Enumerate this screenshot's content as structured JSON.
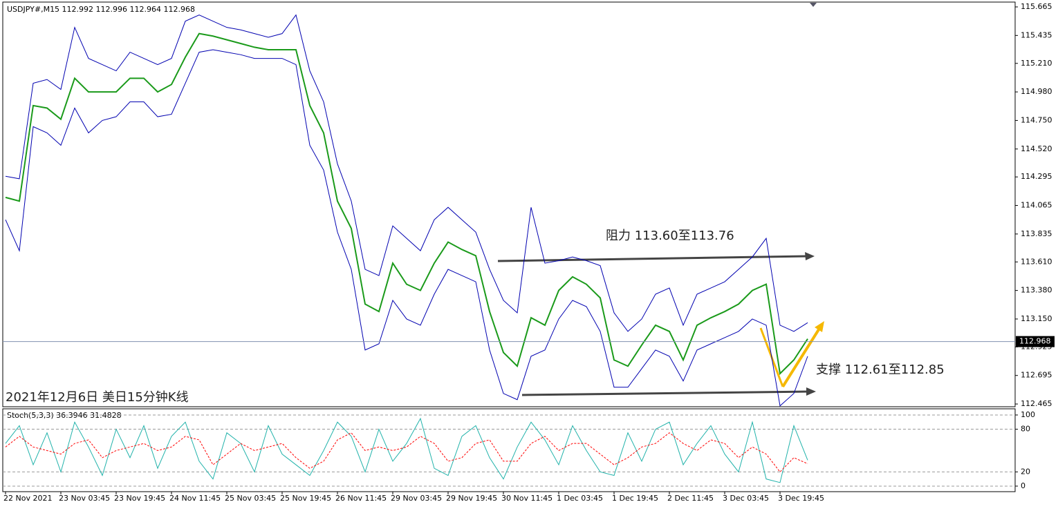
{
  "chart_data": [
    {
      "type": "line",
      "title": "USDJPY#,M15  112.992 112.996 112.964 112.968",
      "annotations": [
        "阻力 113.60至113.76",
        "支撑 112.61至112.85",
        "2021年12月6日 美日15分钟K线"
      ],
      "last_price": 112.968,
      "categories": [
        "22 Nov 2021",
        null,
        null,
        null,
        "23 Nov 03:45",
        null,
        null,
        null,
        "23 Nov 19:45",
        null,
        null,
        null,
        "24 Nov 11:45",
        null,
        null,
        null,
        "25 Nov 03:45",
        null,
        null,
        null,
        "25 Nov 19:45",
        null,
        null,
        null,
        "26 Nov 11:45",
        null,
        null,
        null,
        "29 Nov 03:45",
        null,
        null,
        null,
        "29 Nov 19:45",
        null,
        null,
        null,
        "30 Nov 11:45",
        null,
        null,
        null,
        "1 Dec 03:45",
        null,
        null,
        null,
        "1 Dec 19:45",
        null,
        null,
        null,
        "2 Dec 11:45",
        null,
        null,
        null,
        "3 Dec 03:45",
        null,
        null,
        null,
        "3 Dec 19:45",
        null,
        null
      ],
      "series": [
        {
          "name": "Price",
          "color": "#1a9a1a",
          "width": 2,
          "values": [
            114.13,
            114.1,
            114.87,
            114.85,
            114.76,
            115.09,
            114.98,
            114.98,
            114.98,
            115.09,
            115.09,
            114.98,
            115.04,
            115.26,
            115.45,
            115.43,
            115.4,
            115.37,
            115.34,
            115.32,
            115.32,
            115.32,
            114.87,
            114.65,
            114.1,
            113.88,
            113.27,
            113.21,
            113.6,
            113.43,
            113.38,
            113.6,
            113.77,
            113.71,
            113.66,
            113.21,
            112.88,
            112.77,
            113.16,
            113.1,
            113.38,
            113.49,
            113.43,
            113.32,
            112.82,
            112.77,
            112.94,
            113.1,
            113.05,
            112.82,
            113.1,
            113.16,
            113.21,
            113.27,
            113.38,
            113.43,
            112.71,
            112.82,
            112.99
          ]
        },
        {
          "name": "Upper band",
          "color": "#0000b0",
          "width": 1,
          "values": [
            114.3,
            114.28,
            115.05,
            115.08,
            115.0,
            115.5,
            115.25,
            115.2,
            115.15,
            115.3,
            115.25,
            115.2,
            115.25,
            115.55,
            115.6,
            115.55,
            115.5,
            115.48,
            115.45,
            115.42,
            115.45,
            115.6,
            115.15,
            114.9,
            114.4,
            114.1,
            113.55,
            113.5,
            113.9,
            113.8,
            113.7,
            113.95,
            114.05,
            113.95,
            113.85,
            113.55,
            113.3,
            113.2,
            114.05,
            113.6,
            113.62,
            113.65,
            113.62,
            113.58,
            113.2,
            113.05,
            113.15,
            113.35,
            113.4,
            113.1,
            113.35,
            113.4,
            113.45,
            113.55,
            113.65,
            113.8,
            113.1,
            113.05,
            113.12
          ]
        },
        {
          "name": "Lower band",
          "color": "#0000b0",
          "width": 1,
          "values": [
            113.95,
            113.7,
            114.7,
            114.65,
            114.55,
            114.85,
            114.65,
            114.75,
            114.78,
            114.9,
            114.9,
            114.78,
            114.8,
            115.05,
            115.3,
            115.32,
            115.3,
            115.28,
            115.25,
            115.25,
            115.25,
            115.2,
            114.55,
            114.35,
            113.85,
            113.55,
            112.9,
            112.95,
            113.3,
            113.15,
            113.1,
            113.35,
            113.55,
            113.5,
            113.45,
            112.9,
            112.55,
            112.5,
            112.85,
            112.9,
            113.15,
            113.3,
            113.25,
            113.05,
            112.6,
            112.6,
            112.75,
            112.9,
            112.85,
            112.65,
            112.9,
            112.95,
            113.0,
            113.05,
            113.15,
            113.1,
            112.45,
            112.55,
            112.85
          ]
        }
      ],
      "ylim": [
        112.443,
        115.704
      ],
      "yticks": [
        115.665,
        115.435,
        {
          "value": 115.21,
          "label": "115.210"
        },
        {
          "value": 114.98,
          "label": "114.980"
        },
        {
          "value": 114.75,
          "label": "114.750"
        },
        {
          "value": 114.52,
          "label": "114.520"
        },
        114.295,
        114.065,
        113.835,
        {
          "value": 113.61,
          "label": "113.610"
        },
        {
          "value": 113.38,
          "label": "113.380"
        },
        {
          "value": 113.15,
          "label": "113.150"
        },
        112.925,
        112.695,
        112.465
      ],
      "grid": false
    },
    {
      "type": "line",
      "title": "Stoch(5,3,3) 36.3946 31.4828",
      "series": [
        {
          "name": "%K",
          "color": "#20b2aa",
          "width": 1,
          "dash": false,
          "values": [
            60,
            85,
            30,
            75,
            20,
            90,
            55,
            15,
            80,
            40,
            85,
            25,
            70,
            90,
            35,
            10,
            75,
            60,
            20,
            85,
            45,
            30,
            15,
            50,
            90,
            70,
            20,
            80,
            35,
            60,
            95,
            25,
            15,
            70,
            85,
            40,
            10,
            55,
            90,
            65,
            30,
            85,
            50,
            20,
            15,
            75,
            35,
            80,
            90,
            30,
            60,
            85,
            45,
            20,
            90,
            10,
            5,
            85,
            36.39
          ]
        },
        {
          "name": "%D",
          "color": "#ff0000",
          "width": 1,
          "dash": true,
          "values": [
            55,
            70,
            55,
            50,
            45,
            60,
            65,
            40,
            50,
            55,
            60,
            50,
            55,
            70,
            65,
            30,
            45,
            60,
            50,
            55,
            60,
            40,
            25,
            35,
            65,
            75,
            50,
            55,
            50,
            55,
            70,
            60,
            35,
            40,
            60,
            65,
            35,
            35,
            60,
            70,
            50,
            60,
            60,
            45,
            30,
            40,
            55,
            60,
            75,
            60,
            50,
            65,
            60,
            40,
            55,
            45,
            20,
            40,
            31.48
          ]
        }
      ],
      "ylim": [
        -7.8,
        108.7
      ],
      "yticks": [
        100,
        80,
        20,
        0
      ],
      "grid": true
    }
  ]
}
